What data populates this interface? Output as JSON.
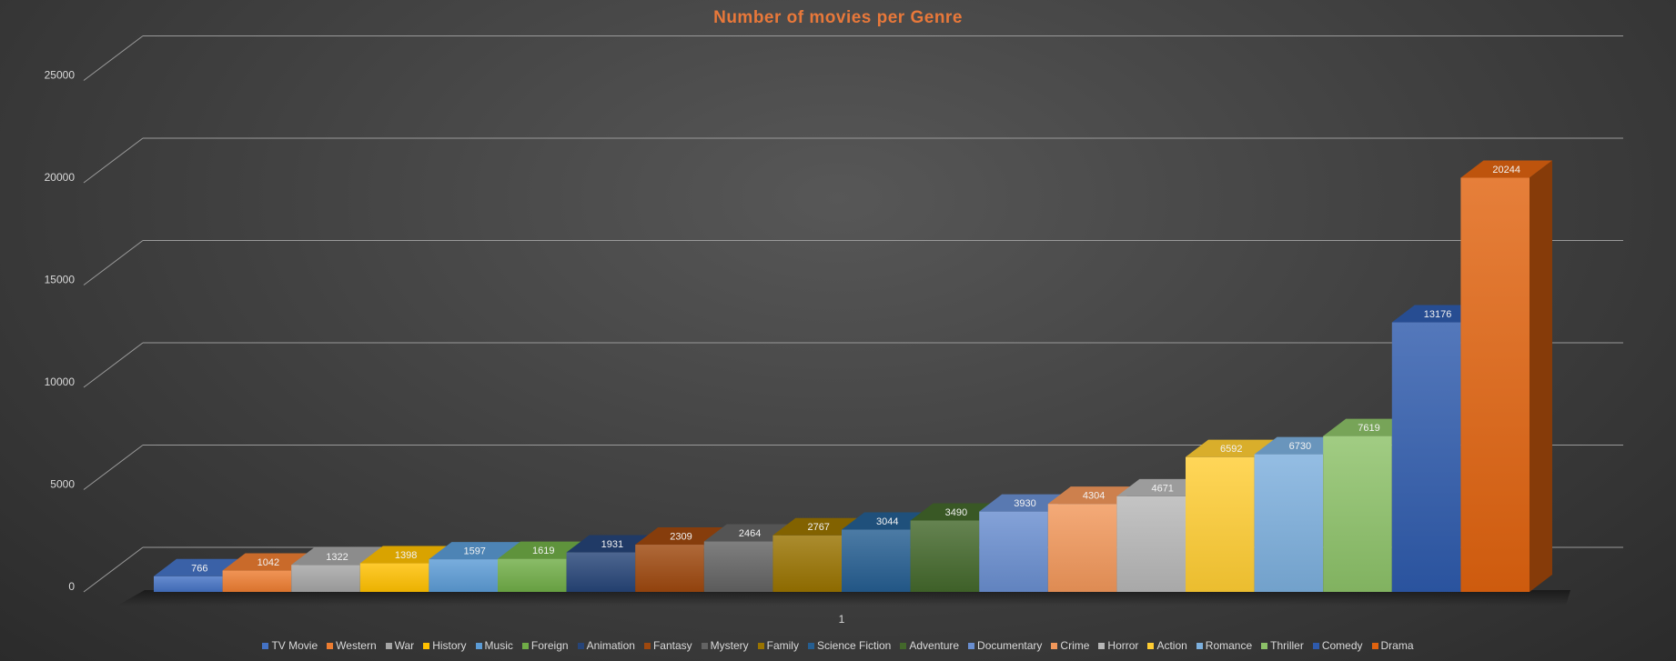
{
  "chart_data": {
    "type": "bar",
    "title": "Number of movies per Genre",
    "categories": [
      "1"
    ],
    "ylim": [
      0,
      25000
    ],
    "yticks": [
      0,
      5000,
      10000,
      15000,
      20000,
      25000
    ],
    "grid": true,
    "legend_position": "bottom",
    "series": [
      {
        "name": "TV Movie",
        "values": [
          766
        ],
        "color": "#4472c4"
      },
      {
        "name": "Western",
        "values": [
          1042
        ],
        "color": "#ed7d31"
      },
      {
        "name": "War",
        "values": [
          1322
        ],
        "color": "#a5a5a5"
      },
      {
        "name": "History",
        "values": [
          1398
        ],
        "color": "#ffc000"
      },
      {
        "name": "Music",
        "values": [
          1597
        ],
        "color": "#5b9bd5"
      },
      {
        "name": "Foreign",
        "values": [
          1619
        ],
        "color": "#70ad47"
      },
      {
        "name": "Animation",
        "values": [
          1931
        ],
        "color": "#264478"
      },
      {
        "name": "Fantasy",
        "values": [
          2309
        ],
        "color": "#9e480e"
      },
      {
        "name": "Mystery",
        "values": [
          2464
        ],
        "color": "#636363"
      },
      {
        "name": "Family",
        "values": [
          2767
        ],
        "color": "#997300"
      },
      {
        "name": "Science Fiction",
        "values": [
          3044
        ],
        "color": "#255e91"
      },
      {
        "name": "Adventure",
        "values": [
          3490
        ],
        "color": "#43682b"
      },
      {
        "name": "Documentary",
        "values": [
          3930
        ],
        "color": "#698ed0"
      },
      {
        "name": "Crime",
        "values": [
          4304
        ],
        "color": "#f1975a"
      },
      {
        "name": "Horror",
        "values": [
          4671
        ],
        "color": "#b7b7b7"
      },
      {
        "name": "Action",
        "values": [
          6592
        ],
        "color": "#ffcd33"
      },
      {
        "name": "Romance",
        "values": [
          6730
        ],
        "color": "#7cafdd"
      },
      {
        "name": "Thriller",
        "values": [
          7619
        ],
        "color": "#8cc168"
      },
      {
        "name": "Comedy",
        "values": [
          13176
        ],
        "color": "#2e5aac"
      },
      {
        "name": "Drama",
        "values": [
          20244
        ],
        "color": "#e0630f"
      }
    ]
  }
}
